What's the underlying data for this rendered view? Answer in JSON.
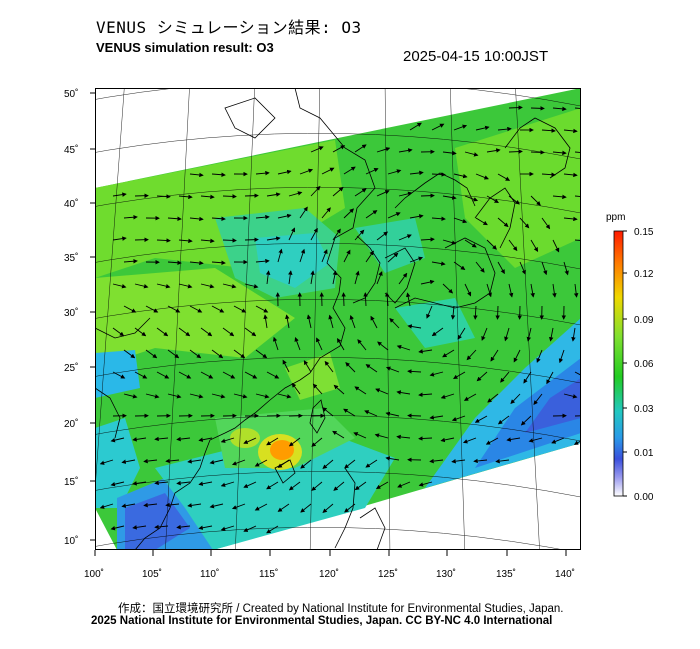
{
  "title_jp": "VENUS シミュレーション結果: O3",
  "title_en": "VENUS simulation result: O3",
  "timestamp": "2025-04-15 10:00JST",
  "map": {
    "lon_ticks": [
      "100˚",
      "105˚",
      "110˚",
      "115˚",
      "120˚",
      "125˚",
      "130˚",
      "135˚",
      "140˚"
    ],
    "lat_ticks": [
      "50˚",
      "45˚",
      "40˚",
      "35˚",
      "30˚",
      "25˚",
      "20˚",
      "15˚",
      "10˚"
    ],
    "field": "O3",
    "lon_range": [
      100,
      140
    ],
    "lat_range": [
      10,
      50
    ]
  },
  "colorbar": {
    "unit": "ppm",
    "ticks": [
      "0.15",
      "0.12",
      "0.09",
      "0.06",
      "0.03",
      "0.01",
      "0.00"
    ],
    "colors": [
      "#ff1a00",
      "#ff8800",
      "#f0d800",
      "#a8e020",
      "#22cc22",
      "#22c8a8",
      "#22c8ee",
      "#2a7ee8",
      "#3a3adc",
      "#ffffff"
    ]
  },
  "footer": {
    "credit": "作成：国立環境研究所 / Created by National Institute for Environmental Studies, Japan.",
    "license": "2025 National Institute for Environmental Studies, Japan. CC BY-NC 4.0 International"
  }
}
